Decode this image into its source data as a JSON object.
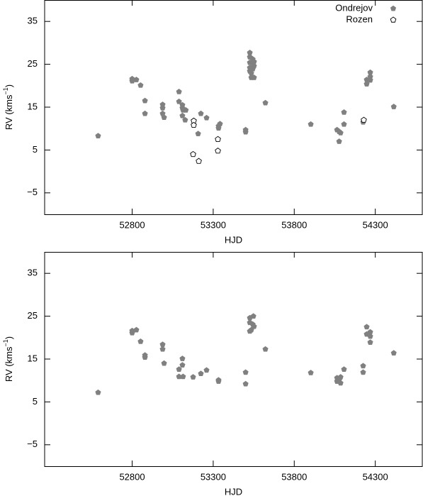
{
  "chart_data": [
    {
      "type": "scatter",
      "xlabel": "HJD",
      "ylabel": [
        "RV (kms",
        "−1",
        ")"
      ],
      "xlim": [
        52260,
        54590
      ],
      "ylim": [
        -10,
        40
      ],
      "xticks": [
        52800,
        53300,
        53800,
        54300
      ],
      "yticks": [
        {
          "value": -5,
          "label": "−5"
        },
        5,
        15,
        25,
        35
      ],
      "legend": "upper right",
      "series": [
        {
          "name": "Ondrejov",
          "color": "#808080",
          "marker": "filled",
          "x": [
            52590,
            52800,
            52800,
            52826,
            52852,
            52879,
            52879,
            52988,
            52988,
            52988,
            52997,
            53089,
            53089,
            53110,
            53110,
            53114,
            53131,
            53110,
            53127,
            53207,
            53224,
            53259,
            53333,
            53342,
            53333,
            53500,
            53500,
            53526,
            53526,
            53526,
            53526,
            53526,
            53535,
            53535,
            53544,
            53544,
            53552,
            53552,
            53552,
            53544,
            53622,
            53902,
            54064,
            54077,
            54086,
            54077,
            54107,
            54107,
            54225,
            54247,
            54247,
            54269,
            54269,
            54269,
            54414
          ],
          "y": [
            8.3,
            21.1,
            21.6,
            21.4,
            20.1,
            16.5,
            13.5,
            15.6,
            14.8,
            13.5,
            12.6,
            18.6,
            16.3,
            15.5,
            14.8,
            14.3,
            14.3,
            13.0,
            12.0,
            8.8,
            13.5,
            12.5,
            10.1,
            11.1,
            10.6,
            9.7,
            9.2,
            27.7,
            26.7,
            25.4,
            24.2,
            23.4,
            22.9,
            21.9,
            26.2,
            25.1,
            25.6,
            24.6,
            21.9,
            23.9,
            16.0,
            11.0,
            9.7,
            9.3,
            9.0,
            7.0,
            13.8,
            11.0,
            11.5,
            21.4,
            20.4,
            22.1,
            23.1,
            21.3,
            15.1
          ]
        },
        {
          "name": "Rozen",
          "color": "#000000",
          "marker": "open",
          "x": [
            53180,
            53180,
            53176,
            53211,
            53329,
            53329,
            54229
          ],
          "y": [
            11.8,
            10.8,
            4.0,
            2.4,
            7.5,
            4.8,
            12.0
          ]
        }
      ]
    },
    {
      "type": "scatter",
      "xlabel": "HJD",
      "ylabel": [
        "RV (kms",
        "−1",
        ")"
      ],
      "xlim": [
        52260,
        54590
      ],
      "ylim": [
        -10,
        40
      ],
      "xticks": [
        52800,
        53300,
        53800,
        54300
      ],
      "yticks": [
        {
          "value": -5,
          "label": "−5"
        },
        5,
        15,
        25,
        35
      ],
      "series": [
        {
          "name": "Ondrejov",
          "color": "#808080",
          "marker": "filled",
          "x": [
            52590,
            52800,
            52800,
            52826,
            52852,
            52879,
            52879,
            52988,
            52988,
            52997,
            53089,
            53089,
            53110,
            53110,
            53114,
            53176,
            53224,
            53259,
            53333,
            53333,
            53500,
            53500,
            53526,
            53548,
            53526,
            53544,
            53552,
            53535,
            53526,
            53622,
            53902,
            54064,
            54077,
            54086,
            54064,
            54086,
            54107,
            54225,
            54225,
            54247,
            54247,
            54269,
            54269,
            54269,
            54414
          ],
          "y": [
            7.2,
            21.6,
            21.1,
            21.8,
            19.1,
            15.9,
            15.4,
            18.4,
            17.3,
            14.0,
            12.6,
            10.9,
            15.1,
            13.6,
            10.9,
            10.8,
            11.6,
            12.4,
            10.1,
            9.8,
            11.9,
            9.2,
            24.6,
            25.0,
            23.5,
            23.1,
            22.6,
            21.8,
            21.5,
            17.3,
            11.8,
            10.6,
            10.1,
            10.8,
            9.8,
            9.4,
            12.6,
            13.4,
            11.9,
            22.5,
            20.8,
            21.3,
            20.3,
            18.9,
            16.4
          ]
        }
      ]
    }
  ]
}
